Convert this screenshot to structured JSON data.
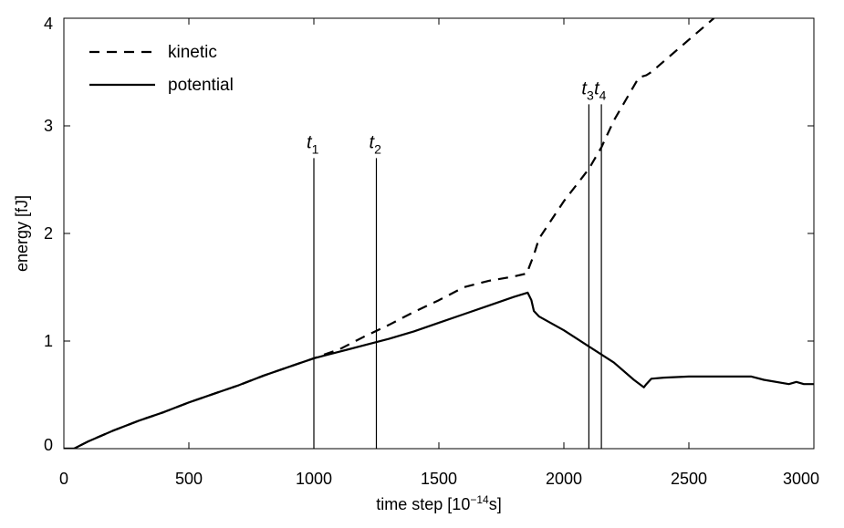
{
  "chart_data": {
    "type": "line",
    "xlabel": "time step [10",
    "xlabel_sup": "−14",
    "xlabel_end": "s]",
    "ylabel": "energy [fJ]",
    "xlim": [
      0,
      3000
    ],
    "ylim": [
      0,
      4
    ],
    "xticks": [
      0,
      500,
      1000,
      1500,
      2000,
      2500,
      3000
    ],
    "yticks": [
      0,
      1,
      2,
      3,
      4
    ],
    "grid": false,
    "legend": {
      "placement": "top-left",
      "entries": [
        "kinetic",
        "potential"
      ]
    },
    "series": [
      {
        "name": "kinetic",
        "style": "dashed",
        "x": [
          0,
          40,
          100,
          200,
          300,
          400,
          500,
          600,
          700,
          800,
          900,
          1000,
          1060,
          1100,
          1200,
          1300,
          1400,
          1500,
          1600,
          1700,
          1800,
          1855,
          1860,
          1880,
          1900,
          2000,
          2100,
          2150,
          2200,
          2250,
          2300,
          2330,
          2350,
          2400,
          2500,
          2600
        ],
        "y": [
          0,
          0.0,
          0.07,
          0.17,
          0.26,
          0.34,
          0.43,
          0.51,
          0.59,
          0.68,
          0.76,
          0.84,
          0.89,
          0.92,
          1.04,
          1.15,
          1.27,
          1.38,
          1.5,
          1.56,
          1.6,
          1.63,
          1.68,
          1.8,
          1.95,
          2.3,
          2.6,
          2.8,
          3.05,
          3.25,
          3.45,
          3.47,
          3.5,
          3.6,
          3.8,
          4.0
        ]
      },
      {
        "name": "potential",
        "style": "solid",
        "x": [
          0,
          40,
          100,
          200,
          300,
          400,
          500,
          600,
          700,
          800,
          900,
          1000,
          1050,
          1100,
          1200,
          1300,
          1400,
          1500,
          1600,
          1700,
          1800,
          1855,
          1870,
          1880,
          1900,
          2000,
          2100,
          2200,
          2280,
          2320,
          2330,
          2350,
          2400,
          2500,
          2600,
          2700,
          2750,
          2800,
          2900,
          2930,
          2960,
          3000
        ],
        "y": [
          0,
          0.0,
          0.07,
          0.17,
          0.26,
          0.34,
          0.43,
          0.51,
          0.59,
          0.68,
          0.76,
          0.84,
          0.87,
          0.9,
          0.96,
          1.02,
          1.09,
          1.17,
          1.25,
          1.33,
          1.41,
          1.45,
          1.38,
          1.28,
          1.23,
          1.1,
          0.95,
          0.8,
          0.64,
          0.57,
          0.6,
          0.65,
          0.66,
          0.67,
          0.67,
          0.67,
          0.67,
          0.64,
          0.6,
          0.62,
          0.6,
          0.6
        ]
      }
    ],
    "markers": [
      {
        "label": "t",
        "sub": "1",
        "x": 1000,
        "y_top": 2.7
      },
      {
        "label": "t",
        "sub": "2",
        "x": 1250,
        "y_top": 2.7
      },
      {
        "label": "t",
        "sub": "3",
        "x": 2100,
        "y_top": 3.2
      },
      {
        "label": "t",
        "sub": "4",
        "x": 2150,
        "y_top": 3.2
      }
    ]
  }
}
